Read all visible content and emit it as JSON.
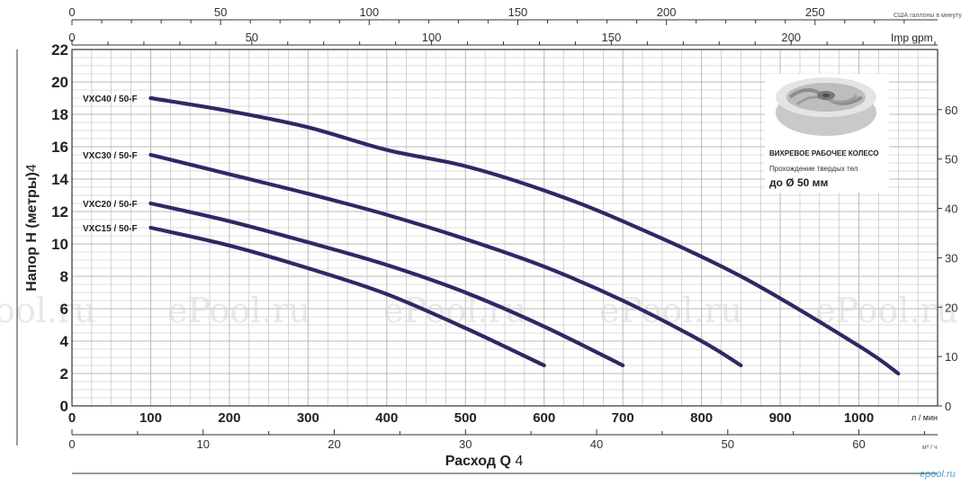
{
  "chart_data": {
    "type": "line",
    "ylabel": "Напор H (метры)",
    "ylabel_suffix": "4",
    "xlabel": "Расход Q",
    "xlabel_suffix": "4",
    "x_unit_primary": "л / мин",
    "x_unit_secondary": "м³ / ч",
    "top_axis_us_label": "США галлоны в минуту",
    "top_axis_imp_label": "Imp gpm",
    "xlim": [
      0,
      1100
    ],
    "ylim": [
      0,
      22
    ],
    "y_ticks": [
      "0",
      "2",
      "4",
      "6",
      "8",
      "10",
      "12",
      "14",
      "16",
      "18",
      "20",
      "22"
    ],
    "x_ticks": [
      "0",
      "100",
      "200",
      "300",
      "400",
      "500",
      "600",
      "700",
      "800",
      "900",
      "1000"
    ],
    "x2_ticks": [
      "0",
      "10",
      "20",
      "30",
      "40",
      "50",
      "60"
    ],
    "top_us_ticks": [
      "0",
      "50",
      "100",
      "150",
      "200",
      "250"
    ],
    "top_imp_ticks": [
      "0",
      "50",
      "100",
      "150",
      "200"
    ],
    "right_ticks": [
      "0",
      "10",
      "20",
      "30",
      "40",
      "50",
      "60"
    ],
    "grid": true,
    "series": [
      {
        "name": "VXC40 / 50-F",
        "x": [
          100,
          200,
          300,
          400,
          500,
          600,
          700,
          850,
          1000,
          1050
        ],
        "y": [
          19.0,
          18.2,
          17.2,
          15.8,
          14.8,
          13.3,
          11.4,
          8.0,
          3.7,
          2.0
        ]
      },
      {
        "name": "VXC30 / 50-F",
        "x": [
          100,
          200,
          300,
          400,
          500,
          600,
          700,
          800,
          850
        ],
        "y": [
          15.5,
          14.3,
          13.1,
          11.8,
          10.3,
          8.6,
          6.5,
          4.0,
          2.5
        ]
      },
      {
        "name": "VXC20 / 50-F",
        "x": [
          100,
          200,
          300,
          400,
          500,
          600,
          700
        ],
        "y": [
          12.5,
          11.4,
          10.1,
          8.7,
          7.0,
          4.9,
          2.5
        ]
      },
      {
        "name": "VXC15 / 50-F",
        "x": [
          100,
          200,
          300,
          400,
          500,
          600
        ],
        "y": [
          11.0,
          9.9,
          8.5,
          6.9,
          4.8,
          2.5
        ]
      }
    ]
  },
  "inset": {
    "title": "ВИХРЕВОЕ РАБОЧЕЕ КОЛЕСО",
    "subtitle": "Прохождение твердых тел",
    "size_text": "до Ø 50 мм"
  },
  "watermark": [
    "Pool.ru",
    "ePool.ru",
    "ePool.ru",
    "ePool.ru",
    "ePool.ru"
  ],
  "corner_logo": "epool.ru",
  "colors": {
    "curve": "#2b2a66",
    "grid": "#b9b9b9",
    "watermark": "#d9d9d9",
    "logo": "#4fa3d9"
  }
}
